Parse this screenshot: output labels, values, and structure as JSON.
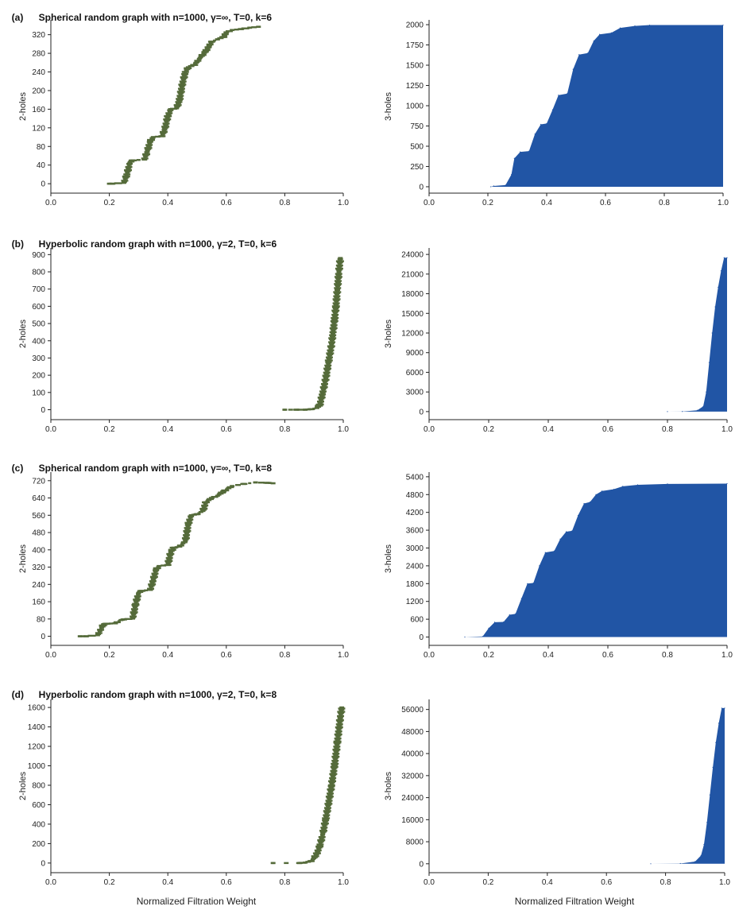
{
  "panels": [
    {
      "label": "(a)",
      "title": "Spherical random graph with n=1000, γ=∞, T=0, k=6"
    },
    {
      "label": "(b)",
      "title": "Hyperbolic random graph with n=1000, γ=2, T=0, k=6"
    },
    {
      "label": "(c)",
      "title": "Spherical random graph with n=1000, γ=∞, T=0, k=8"
    },
    {
      "label": "(d)",
      "title": "Hyperbolic random graph with n=1000, γ=2, T=0, k=8"
    }
  ],
  "xaxis_caption": "Normalized Filtration Weight",
  "colors": {
    "two_holes": "#556b3a",
    "three_holes": "#2155a5",
    "axis": "#222222"
  },
  "chart_data": [
    {
      "id": "a-2",
      "panel": "(a)",
      "type": "scatter",
      "ylabel": "2-holes",
      "xlim": [
        0,
        1.0
      ],
      "xticks": [
        "0.0",
        "0.2",
        "0.4",
        "0.6",
        "0.8",
        "1.0"
      ],
      "yticks": [
        "0",
        "40",
        "80",
        "120",
        "160",
        "200",
        "240",
        "280",
        "320"
      ],
      "ylim": [
        -10,
        345
      ],
      "points": [
        [
          0.2,
          0
        ],
        [
          0.21,
          0
        ],
        [
          0.25,
          2
        ],
        [
          0.26,
          20
        ],
        [
          0.27,
          45
        ],
        [
          0.28,
          50
        ],
        [
          0.32,
          52
        ],
        [
          0.33,
          70
        ],
        [
          0.34,
          92
        ],
        [
          0.35,
          100
        ],
        [
          0.38,
          102
        ],
        [
          0.39,
          118
        ],
        [
          0.4,
          145
        ],
        [
          0.41,
          160
        ],
        [
          0.43,
          162
        ],
        [
          0.44,
          180
        ],
        [
          0.45,
          215
        ],
        [
          0.46,
          240
        ],
        [
          0.47,
          250
        ],
        [
          0.49,
          255
        ],
        [
          0.5,
          262
        ],
        [
          0.51,
          270
        ],
        [
          0.53,
          285
        ],
        [
          0.54,
          295
        ],
        [
          0.55,
          305
        ],
        [
          0.57,
          310
        ],
        [
          0.59,
          315
        ],
        [
          0.6,
          325
        ],
        [
          0.62,
          330
        ],
        [
          0.65,
          332
        ],
        [
          0.68,
          335
        ],
        [
          0.71,
          337
        ]
      ]
    },
    {
      "id": "a-3",
      "panel": "(a)",
      "type": "area",
      "ylabel": "3-holes",
      "xlim": [
        0,
        1.0
      ],
      "xticks": [
        "0.0",
        "0.2",
        "0.4",
        "0.6",
        "0.8",
        "1.0"
      ],
      "yticks": [
        "0",
        "250",
        "500",
        "750",
        "1000",
        "1250",
        "1500",
        "1750",
        "2000"
      ],
      "ylim": [
        -20,
        2020
      ],
      "points": [
        [
          0.21,
          0
        ],
        [
          0.22,
          10
        ],
        [
          0.26,
          20
        ],
        [
          0.28,
          150
        ],
        [
          0.29,
          350
        ],
        [
          0.31,
          430
        ],
        [
          0.34,
          440
        ],
        [
          0.36,
          650
        ],
        [
          0.38,
          770
        ],
        [
          0.4,
          780
        ],
        [
          0.42,
          950
        ],
        [
          0.44,
          1130
        ],
        [
          0.47,
          1150
        ],
        [
          0.49,
          1450
        ],
        [
          0.51,
          1630
        ],
        [
          0.54,
          1650
        ],
        [
          0.56,
          1800
        ],
        [
          0.58,
          1880
        ],
        [
          0.62,
          1900
        ],
        [
          0.65,
          1960
        ],
        [
          0.7,
          1985
        ],
        [
          0.75,
          1995
        ],
        [
          1.0,
          1995
        ]
      ]
    },
    {
      "id": "b-2",
      "panel": "(b)",
      "type": "scatter",
      "ylabel": "2-holes",
      "xlim": [
        0,
        1.0
      ],
      "xticks": [
        "0.0",
        "0.2",
        "0.4",
        "0.6",
        "0.8",
        "1.0"
      ],
      "yticks": [
        "0",
        "100",
        "200",
        "300",
        "400",
        "500",
        "600",
        "700",
        "800",
        "900"
      ],
      "ylim": [
        -30,
        920
      ],
      "points": [
        [
          0.8,
          0
        ],
        [
          0.84,
          0
        ],
        [
          0.87,
          0
        ],
        [
          0.89,
          3
        ],
        [
          0.91,
          10
        ],
        [
          0.92,
          30
        ],
        [
          0.93,
          100
        ],
        [
          0.94,
          180
        ],
        [
          0.95,
          280
        ],
        [
          0.96,
          380
        ],
        [
          0.965,
          450
        ],
        [
          0.97,
          520
        ],
        [
          0.975,
          600
        ],
        [
          0.98,
          700
        ],
        [
          0.985,
          800
        ],
        [
          0.99,
          880
        ]
      ]
    },
    {
      "id": "b-3",
      "panel": "(b)",
      "type": "area",
      "ylabel": "3-holes",
      "xlim": [
        0,
        1.0
      ],
      "xticks": [
        "0.0",
        "0.2",
        "0.4",
        "0.6",
        "0.8",
        "1.0"
      ],
      "yticks": [
        "0",
        "3000",
        "6000",
        "9000",
        "12000",
        "15000",
        "18000",
        "21000",
        "24000"
      ],
      "ylim": [
        -500,
        24500
      ],
      "points": [
        [
          0.8,
          0
        ],
        [
          0.85,
          20
        ],
        [
          0.9,
          200
        ],
        [
          0.92,
          800
        ],
        [
          0.93,
          3000
        ],
        [
          0.94,
          7500
        ],
        [
          0.95,
          12000
        ],
        [
          0.96,
          16000
        ],
        [
          0.97,
          19000
        ],
        [
          0.98,
          21500
        ],
        [
          0.99,
          23500
        ],
        [
          1.0,
          23500
        ]
      ]
    },
    {
      "id": "c-2",
      "panel": "(c)",
      "type": "scatter",
      "ylabel": "2-holes",
      "xlim": [
        0,
        1.0
      ],
      "xticks": [
        "0.0",
        "0.2",
        "0.4",
        "0.6",
        "0.8",
        "1.0"
      ],
      "yticks": [
        "0",
        "80",
        "160",
        "240",
        "320",
        "400",
        "480",
        "560",
        "640",
        "720"
      ],
      "ylim": [
        -20,
        745
      ],
      "points": [
        [
          0.1,
          0
        ],
        [
          0.12,
          0
        ],
        [
          0.16,
          5
        ],
        [
          0.17,
          30
        ],
        [
          0.18,
          55
        ],
        [
          0.19,
          58
        ],
        [
          0.22,
          60
        ],
        [
          0.24,
          75
        ],
        [
          0.25,
          78
        ],
        [
          0.28,
          82
        ],
        [
          0.29,
          150
        ],
        [
          0.3,
          200
        ],
        [
          0.31,
          210
        ],
        [
          0.34,
          215
        ],
        [
          0.35,
          260
        ],
        [
          0.36,
          310
        ],
        [
          0.37,
          325
        ],
        [
          0.4,
          330
        ],
        [
          0.41,
          390
        ],
        [
          0.42,
          410
        ],
        [
          0.44,
          415
        ],
        [
          0.46,
          440
        ],
        [
          0.47,
          520
        ],
        [
          0.48,
          560
        ],
        [
          0.5,
          565
        ],
        [
          0.52,
          580
        ],
        [
          0.53,
          620
        ],
        [
          0.55,
          640
        ],
        [
          0.57,
          650
        ],
        [
          0.59,
          670
        ],
        [
          0.62,
          695
        ],
        [
          0.66,
          705
        ],
        [
          0.7,
          712
        ],
        [
          0.74,
          710
        ],
        [
          0.76,
          708
        ]
      ]
    },
    {
      "id": "c-3",
      "panel": "(c)",
      "type": "area",
      "ylabel": "3-holes",
      "xlim": [
        0,
        1.0
      ],
      "xticks": [
        "0.0",
        "0.2",
        "0.4",
        "0.6",
        "0.8",
        "1.0"
      ],
      "yticks": [
        "0",
        "600",
        "1200",
        "1800",
        "2400",
        "3000",
        "3600",
        "4200",
        "4800",
        "5400"
      ],
      "ylim": [
        -120,
        5450
      ],
      "points": [
        [
          0.12,
          0
        ],
        [
          0.18,
          20
        ],
        [
          0.2,
          300
        ],
        [
          0.22,
          500
        ],
        [
          0.25,
          510
        ],
        [
          0.27,
          750
        ],
        [
          0.29,
          780
        ],
        [
          0.31,
          1300
        ],
        [
          0.33,
          1800
        ],
        [
          0.35,
          1820
        ],
        [
          0.37,
          2400
        ],
        [
          0.39,
          2850
        ],
        [
          0.42,
          2900
        ],
        [
          0.44,
          3300
        ],
        [
          0.46,
          3550
        ],
        [
          0.48,
          3580
        ],
        [
          0.5,
          4100
        ],
        [
          0.52,
          4500
        ],
        [
          0.54,
          4550
        ],
        [
          0.56,
          4800
        ],
        [
          0.58,
          4920
        ],
        [
          0.62,
          4980
        ],
        [
          0.65,
          5080
        ],
        [
          0.7,
          5130
        ],
        [
          0.8,
          5160
        ],
        [
          1.0,
          5170
        ]
      ]
    },
    {
      "id": "d-2",
      "panel": "(d)",
      "type": "scatter",
      "ylabel": "2-holes",
      "xlim": [
        0,
        1.0
      ],
      "xticks": [
        "0.0",
        "0.2",
        "0.4",
        "0.6",
        "0.8",
        "1.0"
      ],
      "yticks": [
        "0",
        "200",
        "400",
        "600",
        "800",
        "1000",
        "1200",
        "1400",
        "1600"
      ],
      "ylim": [
        -50,
        1650
      ],
      "points": [
        [
          0.76,
          0
        ],
        [
          0.85,
          0
        ],
        [
          0.87,
          5
        ],
        [
          0.89,
          20
        ],
        [
          0.9,
          50
        ],
        [
          0.91,
          100
        ],
        [
          0.92,
          180
        ],
        [
          0.93,
          300
        ],
        [
          0.94,
          450
        ],
        [
          0.95,
          620
        ],
        [
          0.96,
          800
        ],
        [
          0.97,
          1000
        ],
        [
          0.98,
          1250
        ],
        [
          0.99,
          1500
        ],
        [
          0.995,
          1600
        ]
      ]
    },
    {
      "id": "d-3",
      "panel": "(d)",
      "type": "area",
      "ylabel": "3-holes",
      "xlim": [
        0,
        1.0
      ],
      "xticks": [
        "0.0",
        "0.2",
        "0.4",
        "0.6",
        "0.8",
        "1.0"
      ],
      "yticks": [
        "0",
        "8000",
        "16000",
        "24000",
        "32000",
        "40000",
        "48000",
        "56000"
      ],
      "ylim": [
        -1500,
        58500
      ],
      "points": [
        [
          0.75,
          0
        ],
        [
          0.85,
          100
        ],
        [
          0.9,
          800
        ],
        [
          0.92,
          3000
        ],
        [
          0.93,
          7000
        ],
        [
          0.94,
          15000
        ],
        [
          0.95,
          25000
        ],
        [
          0.96,
          35000
        ],
        [
          0.97,
          44000
        ],
        [
          0.98,
          51000
        ],
        [
          0.99,
          56500
        ],
        [
          1.0,
          56500
        ]
      ]
    }
  ]
}
